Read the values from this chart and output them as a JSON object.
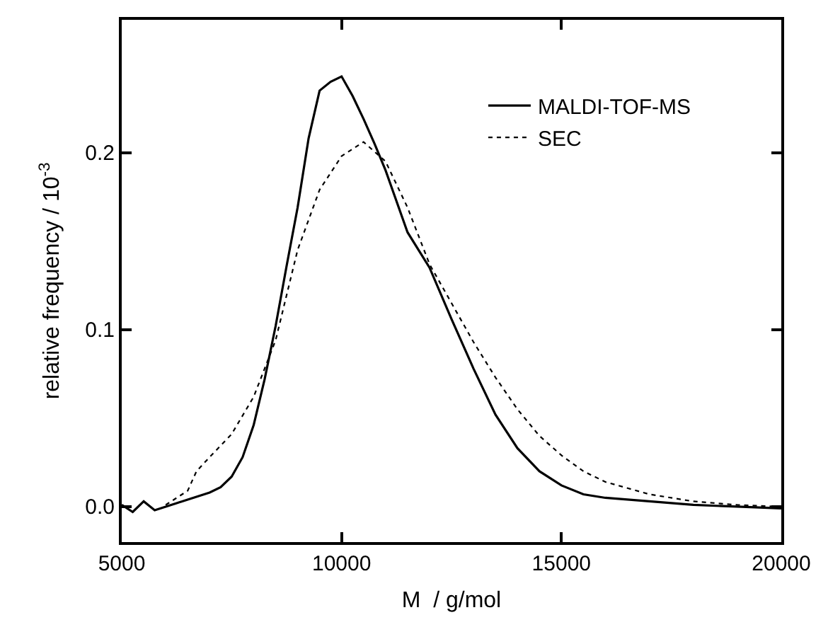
{
  "chart_data": {
    "type": "line",
    "xlabel": "M  / g/mol",
    "ylabel": "relative frequency / 10$^{-3}$",
    "xlim": [
      5000,
      20000
    ],
    "xticks": [
      5000,
      10000,
      15000,
      20000
    ],
    "ylim": [
      -0.02,
      0.275
    ],
    "yticks": [
      {
        "value": 0,
        "label": "0.0"
      },
      0.1,
      0.2
    ],
    "legend": "top right",
    "marker": "none",
    "series": [
      {
        "name": "MALDI-TOF-MS",
        "color": "#000000",
        "line_style": "solid",
        "x": [
          5000,
          5250,
          5500,
          5750,
          6000,
          6250,
          6500,
          6750,
          7000,
          7250,
          7500,
          7750,
          8000,
          8250,
          8500,
          8750,
          9000,
          9250,
          9500,
          9750,
          10000,
          10250,
          10500,
          10750,
          11000,
          11500,
          12000,
          12500,
          13000,
          13500,
          14000,
          14500,
          15000,
          15500,
          16000,
          17000,
          18000,
          19000,
          20000
        ],
        "values": [
          0.001,
          -0.003,
          0.003,
          -0.002,
          0.0,
          0.002,
          0.004,
          0.006,
          0.008,
          0.011,
          0.017,
          0.028,
          0.046,
          0.072,
          0.102,
          0.136,
          0.169,
          0.208,
          0.235,
          0.24,
          0.243,
          0.232,
          0.219,
          0.205,
          0.19,
          0.155,
          0.135,
          0.106,
          0.078,
          0.052,
          0.033,
          0.02,
          0.012,
          0.007,
          0.005,
          0.003,
          0.001,
          0.0,
          -0.001
        ]
      },
      {
        "name": "SEC",
        "color": "#000000",
        "line_style": "dotted",
        "x": [
          6000,
          6500,
          6700,
          7000,
          7500,
          8000,
          8500,
          9000,
          9500,
          10000,
          10500,
          11000,
          11500,
          12000,
          12500,
          13000,
          13500,
          14000,
          14500,
          15000,
          15500,
          16000,
          17000,
          18000,
          19000,
          20000
        ],
        "values": [
          0.001,
          0.009,
          0.02,
          0.028,
          0.041,
          0.062,
          0.094,
          0.145,
          0.179,
          0.198,
          0.206,
          0.195,
          0.169,
          0.137,
          0.115,
          0.093,
          0.073,
          0.055,
          0.04,
          0.029,
          0.02,
          0.014,
          0.007,
          0.003,
          0.001,
          0.0
        ]
      }
    ]
  }
}
